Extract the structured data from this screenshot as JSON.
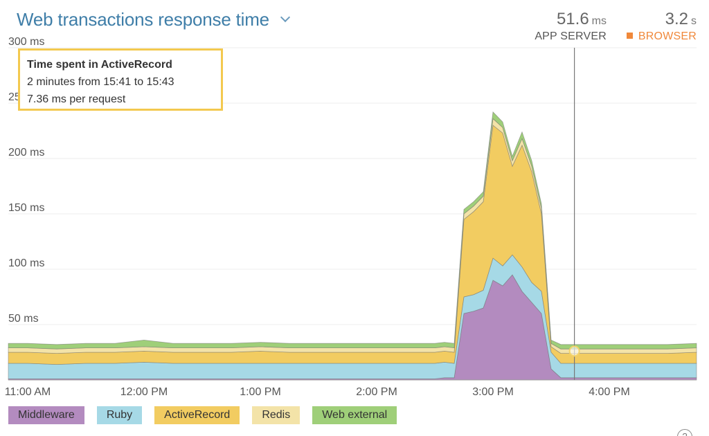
{
  "header": {
    "title": "Web transactions response time",
    "app_server": {
      "value": "51.6",
      "unit": "ms",
      "label": "APP SERVER"
    },
    "browser": {
      "value": "3.2",
      "unit": "s",
      "label": "BROWSER",
      "color": "#f0883a"
    }
  },
  "tooltip": {
    "title": "Time spent in ActiveRecord",
    "range": "2 minutes from 15:41 to 15:43",
    "value": "7.36 ms per request"
  },
  "help_icon": "info-icon",
  "chart_data": {
    "type": "area",
    "stacked": true,
    "title": "Web transactions response time",
    "xlabel": "",
    "ylabel": "",
    "x_range": [
      "10:50",
      "16:45"
    ],
    "ylim": [
      0,
      300
    ],
    "y_ticks": [
      {
        "value": 50,
        "label": "50 ms"
      },
      {
        "value": 100,
        "label": "100 ms"
      },
      {
        "value": 150,
        "label": "150 ms"
      },
      {
        "value": 200,
        "label": "200 ms"
      },
      {
        "value": 250,
        "label": "250 ms"
      },
      {
        "value": 300,
        "label": "300 ms"
      }
    ],
    "x_ticks": [
      {
        "value": "11:00",
        "label": "11:00 AM"
      },
      {
        "value": "12:00",
        "label": "12:00 PM"
      },
      {
        "value": "13:00",
        "label": "1:00 PM"
      },
      {
        "value": "14:00",
        "label": "2:00 PM"
      },
      {
        "value": "15:00",
        "label": "3:00 PM"
      },
      {
        "value": "16:00",
        "label": "4:00 PM"
      }
    ],
    "grid": true,
    "legend_position": "bottom-left",
    "cursor_time": "15:42",
    "x": [
      "10:50",
      "11:00",
      "11:15",
      "11:30",
      "11:45",
      "12:00",
      "12:15",
      "12:30",
      "12:45",
      "13:00",
      "13:15",
      "13:30",
      "13:45",
      "14:00",
      "14:15",
      "14:30",
      "14:35",
      "14:40",
      "14:45",
      "14:50",
      "14:55",
      "15:00",
      "15:05",
      "15:10",
      "15:15",
      "15:20",
      "15:25",
      "15:30",
      "15:35",
      "15:45",
      "16:00",
      "16:15",
      "16:30",
      "16:45"
    ],
    "series": [
      {
        "name": "Middleware",
        "color": "#b38bbf",
        "values": [
          1,
          1,
          1,
          1,
          1,
          1,
          1,
          1,
          1,
          1,
          1,
          1,
          1,
          1,
          1,
          1,
          2,
          2,
          60,
          62,
          65,
          90,
          85,
          95,
          80,
          70,
          60,
          10,
          2,
          2,
          2,
          2,
          2,
          2
        ]
      },
      {
        "name": "Ruby",
        "color": "#a6d9e6",
        "values": [
          14,
          14,
          13,
          14,
          14,
          15,
          14,
          14,
          14,
          14,
          14,
          14,
          14,
          14,
          14,
          14,
          14,
          13,
          15,
          15,
          16,
          20,
          18,
          18,
          22,
          18,
          20,
          15,
          13,
          13,
          13,
          13,
          13,
          13
        ]
      },
      {
        "name": "ActiveRecord",
        "color": "#f2cc61",
        "values": [
          10,
          10,
          10,
          10,
          10,
          10,
          10,
          10,
          10,
          11,
          10,
          10,
          10,
          10,
          10,
          10,
          10,
          10,
          70,
          75,
          80,
          120,
          120,
          80,
          110,
          100,
          70,
          5,
          9,
          9,
          9,
          9,
          9,
          10
        ]
      },
      {
        "name": "Redis",
        "color": "#f3e3a8",
        "values": [
          4,
          4,
          4,
          4,
          4,
          4,
          4,
          4,
          4,
          4,
          4,
          4,
          4,
          4,
          4,
          4,
          4,
          4,
          5,
          5,
          5,
          6,
          5,
          5,
          6,
          5,
          5,
          3,
          4,
          4,
          4,
          4,
          4,
          4
        ]
      },
      {
        "name": "Web external",
        "color": "#9fcf79",
        "values": [
          4,
          4,
          4,
          4,
          4,
          6,
          4,
          4,
          4,
          4,
          4,
          4,
          4,
          4,
          4,
          4,
          4,
          4,
          4,
          4,
          4,
          6,
          5,
          4,
          6,
          5,
          4,
          3,
          4,
          4,
          4,
          4,
          4,
          4
        ]
      }
    ]
  }
}
